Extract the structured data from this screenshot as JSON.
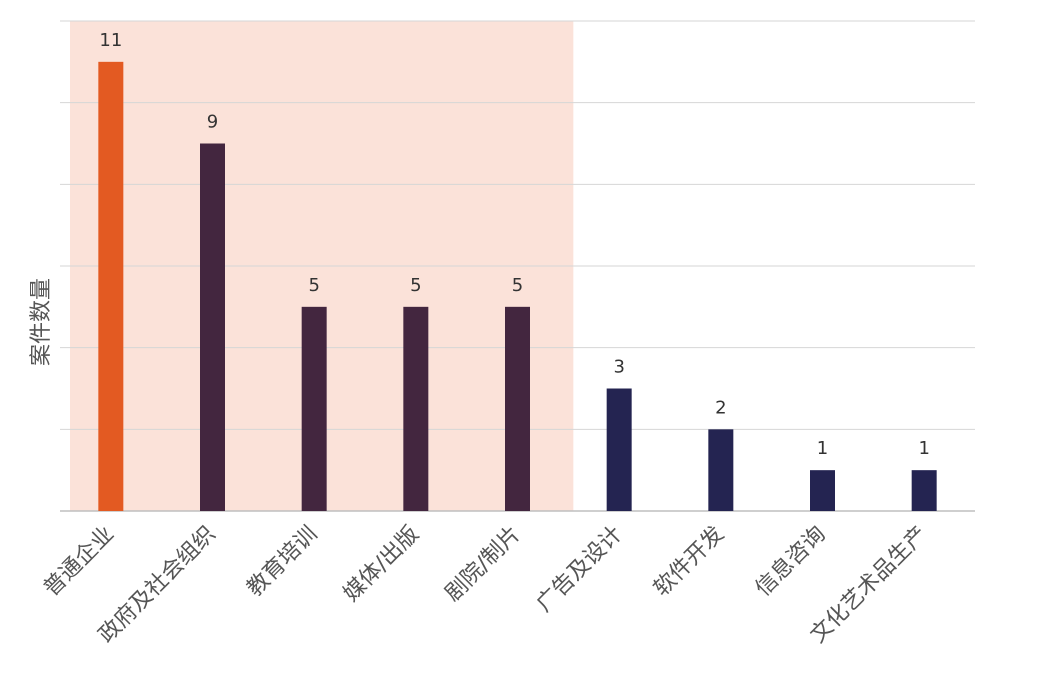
{
  "chart_data": {
    "type": "bar",
    "title": "",
    "xlabel": "",
    "ylabel": "案件数量",
    "categories": [
      "普通企业",
      "政府及社会组织",
      "教育培训",
      "媒体/出版",
      "剧院/制片",
      "广告及设计",
      "软件开发",
      "信息咨询",
      "文化艺术品生产"
    ],
    "values": [
      11,
      9,
      5,
      5,
      5,
      3,
      2,
      1,
      1
    ],
    "ylim": [
      0,
      12
    ],
    "grid": true,
    "highlight_range": {
      "from_category": "普通企业",
      "to_category": "剧院/制片"
    },
    "colors": {
      "highlight_bar": "#E35A22",
      "group_a_bar": "#43263F",
      "group_b_bar": "#242451",
      "highlight_region": "#FBE2D9",
      "gridline": "#D6D6D6"
    },
    "bar_color_groups": [
      "highlight_bar",
      "group_a_bar",
      "group_a_bar",
      "group_a_bar",
      "group_a_bar",
      "group_b_bar",
      "group_b_bar",
      "group_b_bar",
      "group_b_bar"
    ]
  }
}
